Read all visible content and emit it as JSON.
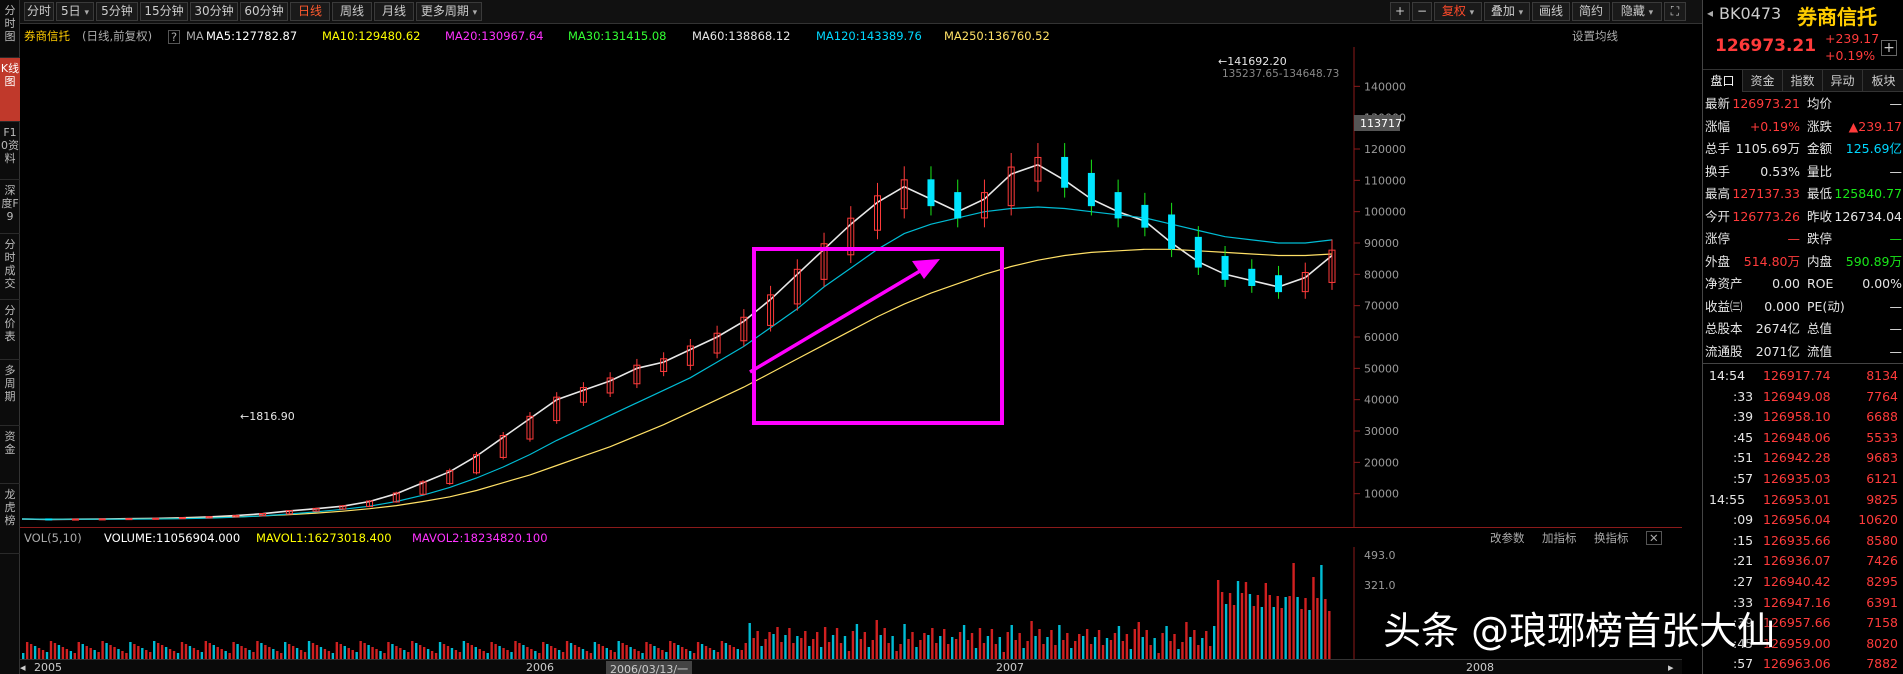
{
  "left_tabs": [
    {
      "label": "分时图",
      "active": false
    },
    {
      "label": "K线图",
      "active": true
    },
    {
      "label": "F10资料",
      "active": false
    },
    {
      "label": "深度F9",
      "active": false
    },
    {
      "label": "分时成交",
      "active": false
    },
    {
      "label": "分价表",
      "active": false
    },
    {
      "label": "多周期",
      "active": false
    },
    {
      "label": "资金",
      "active": false
    },
    {
      "label": "龙虎榜",
      "active": false
    }
  ],
  "toolbar": {
    "periods": [
      "分时",
      "5日",
      "5分钟",
      "15分钟",
      "30分钟",
      "60分钟",
      "日线",
      "周线",
      "月线",
      "更多周期"
    ],
    "active_period": "日线",
    "right_buttons": [
      "复权",
      "叠加",
      "画线",
      "简约",
      "隐藏"
    ],
    "plus": "+",
    "minus": "−"
  },
  "indicator": {
    "name": "券商信托",
    "mode": "(日线,前复权)",
    "help": "?",
    "ma_label": "MA",
    "ma5": "MA5:127782.87",
    "ma10": "MA10:129480.62",
    "ma20": "MA20:130967.64",
    "ma30": "MA30:131415.08",
    "ma60": "MA60:138868.12",
    "ma120": "MA120:143389.76",
    "ma250": "MA250:136760.52",
    "settings": "设置均线"
  },
  "volume": {
    "label": "VOL(5,10)",
    "volume": "VOLUME:11056904.000",
    "mavol1": "MAVOL1:16273018.400",
    "mavol2": "MAVOL2:18234820.100",
    "buttons": [
      "改参数",
      "加指标",
      "换指标"
    ],
    "axis": [
      "493.0",
      "321.0"
    ]
  },
  "chart_data": {
    "type": "line",
    "ylim": [
      0,
      150000
    ],
    "y_ticks": [
      10000,
      20000,
      30000,
      40000,
      50000,
      60000,
      70000,
      80000,
      90000,
      100000,
      110000,
      120000,
      130000,
      140000
    ],
    "y_tick_labels": [
      "10000",
      "20000",
      "30000",
      "40000",
      "50000",
      "60000",
      "70000",
      "80000",
      "90000",
      "100000",
      "110000",
      "120000",
      "130000",
      "140000"
    ],
    "x_labels": [
      "2005",
      "2006",
      "2006/03/13/一",
      "2007",
      "2008"
    ],
    "price_labels": {
      "high": "141692.20",
      "high_range": "135237.65-134648.73",
      "low": "1816.90",
      "current": "113717"
    },
    "series": [
      {
        "color": "#e8e8e8",
        "values": [
          1900,
          1800,
          1850,
          1900,
          2000,
          2100,
          2300,
          2600,
          3000,
          3600,
          4500,
          5200,
          6000,
          7500,
          10000,
          13500,
          17000,
          22000,
          28000,
          34000,
          40000,
          43000,
          46000,
          50000,
          52000,
          56000,
          60000,
          65000,
          72000,
          80000,
          88000,
          96000,
          103000,
          108000,
          104000,
          100000,
          104000,
          112000,
          115000,
          110000,
          104000,
          100000,
          97000,
          90000,
          84000,
          80000,
          78000,
          76000,
          79000,
          86000
        ]
      },
      {
        "color": "#ffe066",
        "values": [
          1900,
          1850,
          1850,
          1850,
          1900,
          2000,
          2100,
          2300,
          2600,
          2900,
          3300,
          3800,
          4400,
          5200,
          6200,
          7500,
          9000,
          11000,
          13500,
          16000,
          19000,
          22000,
          25000,
          28500,
          32000,
          36000,
          40000,
          44000,
          48500,
          53000,
          57500,
          62000,
          66500,
          70500,
          74000,
          77000,
          80000,
          82500,
          84500,
          86000,
          87000,
          87500,
          88000,
          88000,
          87500,
          87000,
          86500,
          86000,
          86000,
          86500
        ]
      },
      {
        "color": "#00bcd4",
        "values": [
          1900,
          1850,
          1850,
          1850,
          1850,
          1900,
          2000,
          2200,
          2500,
          2900,
          3500,
          4200,
          5000,
          6000,
          7500,
          9500,
          12000,
          15000,
          18500,
          22500,
          27000,
          31000,
          35000,
          39000,
          43000,
          47000,
          52000,
          57000,
          63000,
          69000,
          76000,
          82000,
          88000,
          93000,
          96000,
          98000,
          100000,
          101000,
          101500,
          101000,
          100000,
          99000,
          98000,
          96000,
          94000,
          92000,
          91000,
          90000,
          90000,
          91000
        ]
      }
    ]
  },
  "right": {
    "code": "BK0473",
    "name": "券商信托",
    "price": "126973.21",
    "change": "+239.17",
    "change_pct": "+0.19%",
    "tabs": [
      "盘口",
      "资金",
      "指数",
      "异动",
      "板块"
    ],
    "quote": [
      [
        "最新",
        "126973.21",
        "均价",
        "—"
      ],
      [
        "涨幅",
        "+0.19%",
        "涨跌",
        "▲239.17"
      ],
      [
        "总手",
        "1105.69万",
        "金额",
        "125.69亿"
      ],
      [
        "换手",
        "0.53%",
        "量比",
        "—"
      ],
      [
        "最高",
        "127137.33",
        "最低",
        "125840.77"
      ],
      [
        "今开",
        "126773.26",
        "昨收",
        "126734.04"
      ],
      [
        "涨停",
        "—",
        "跌停",
        "—"
      ],
      [
        "外盘",
        "514.80万",
        "内盘",
        "590.89万"
      ],
      [
        "净资产",
        "0.00",
        "ROE",
        "0.00%"
      ],
      [
        "收益㈢",
        "0.000",
        "PE(动)",
        "—"
      ],
      [
        "总股本",
        "2674亿",
        "总值",
        "—"
      ],
      [
        "流通股",
        "2071亿",
        "流值",
        "—"
      ]
    ],
    "ticks": [
      [
        "14:54",
        "126917.74",
        "8134"
      ],
      [
        ":33",
        "126949.08",
        "7764"
      ],
      [
        ":39",
        "126958.10",
        "6688"
      ],
      [
        ":45",
        "126948.06",
        "5533"
      ],
      [
        ":51",
        "126942.28",
        "9683"
      ],
      [
        ":57",
        "126935.03",
        "6121"
      ],
      [
        "14:55",
        "126953.01",
        "9825"
      ],
      [
        ":09",
        "126956.04",
        "10620"
      ],
      [
        ":15",
        "126935.66",
        "8580"
      ],
      [
        ":21",
        "126936.07",
        "7426"
      ],
      [
        ":27",
        "126940.42",
        "8295"
      ],
      [
        ":33",
        "126947.16",
        "6391"
      ],
      [
        ":39",
        "126957.66",
        "7158"
      ],
      [
        ":45",
        "126959.00",
        "8020"
      ],
      [
        ":57",
        "126963.06",
        "7882"
      ]
    ]
  },
  "watermark": "头条 @琅琊榜首张大仙"
}
